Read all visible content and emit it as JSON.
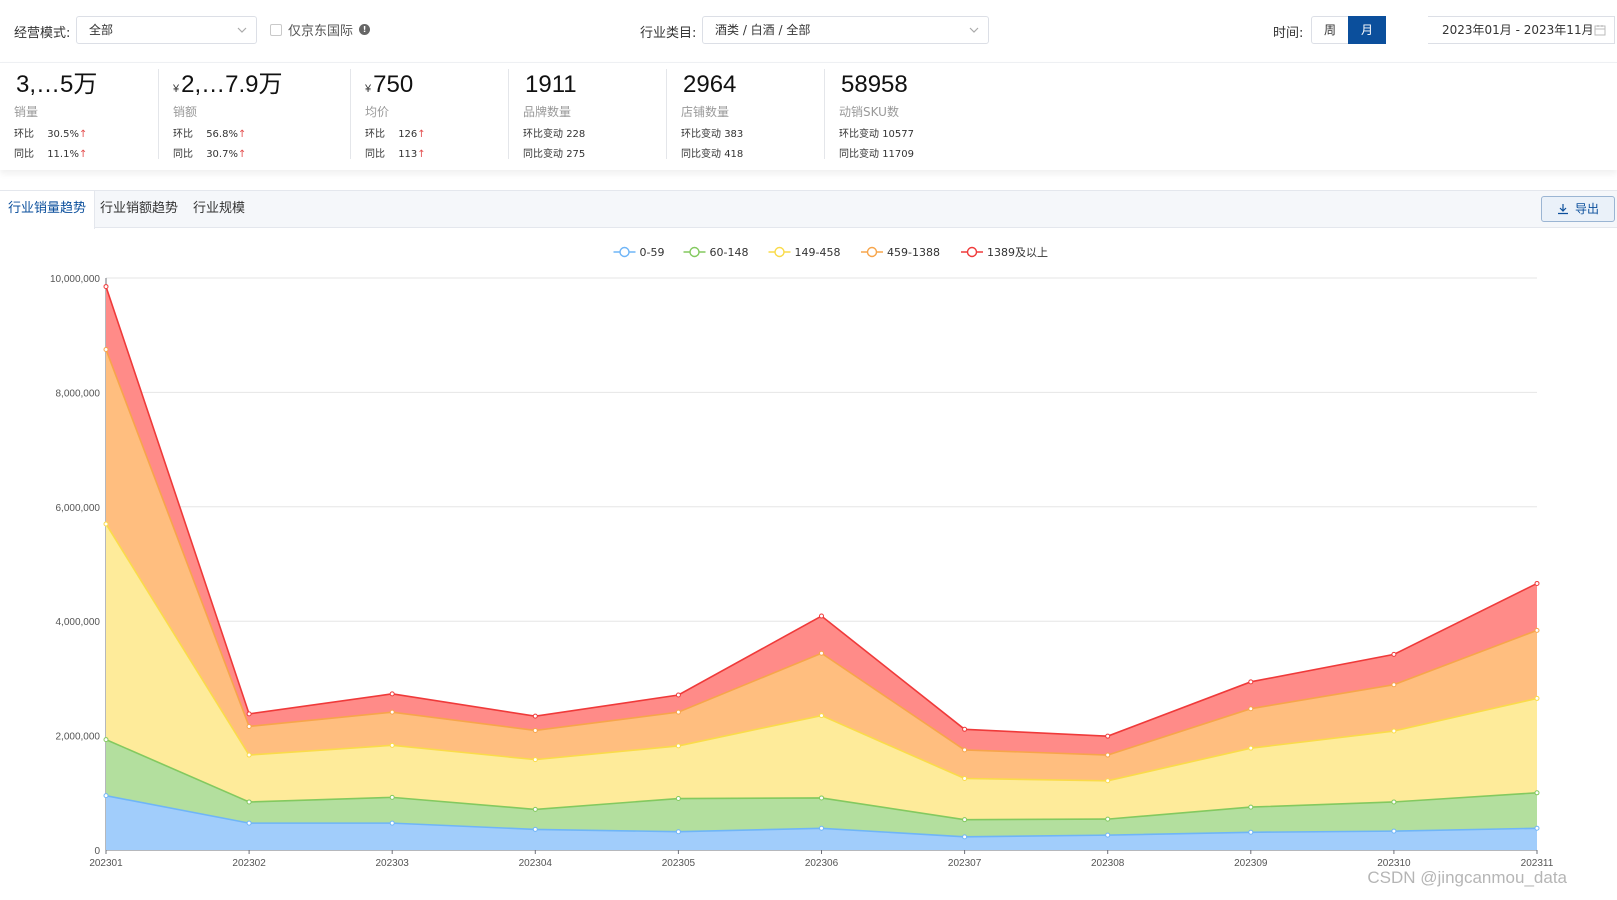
{
  "filters": {
    "mode_label": "经营模式:",
    "mode_value": "全部",
    "jd_intl_label": "仅京东国际",
    "category_label": "行业类目:",
    "category_value": "酒类 / 白酒 / 全部",
    "time_label": "时间:",
    "week_label": "周",
    "month_label": "月",
    "date_range": "2023年01月 - 2023年11月"
  },
  "kpis": [
    {
      "value": "3,…5万",
      "currency": "",
      "label": "销量",
      "r1k": "环比",
      "r1v": "30.5%",
      "r1up": "↑",
      "r2k": "同比",
      "r2v": "11.1%",
      "r2up": "↑"
    },
    {
      "value": "2,…7.9万",
      "currency": "¥",
      "label": "销额",
      "r1k": "环比",
      "r1v": "56.8%",
      "r1up": "↑",
      "r2k": "同比",
      "r2v": "30.7%",
      "r2up": "↑"
    },
    {
      "value": "750",
      "currency": "¥",
      "label": "均价",
      "r1k": "环比",
      "r1v": "126",
      "r1up": "↑",
      "r2k": "同比",
      "r2v": "113",
      "r2up": "↑"
    },
    {
      "value": "1911",
      "currency": "",
      "label": "品牌数量",
      "r1k": "环比变动",
      "r1v": "228",
      "r1up": "",
      "r2k": "同比变动",
      "r2v": "275",
      "r2up": ""
    },
    {
      "value": "2964",
      "currency": "",
      "label": "店铺数量",
      "r1k": "环比变动",
      "r1v": "383",
      "r1up": "",
      "r2k": "同比变动",
      "r2v": "418",
      "r2up": ""
    },
    {
      "value": "58958",
      "currency": "",
      "label": "动销SKU数",
      "r1k": "环比变动",
      "r1v": "10577",
      "r1up": "",
      "r2k": "同比变动",
      "r2v": "11709",
      "r2up": ""
    }
  ],
  "tabs": [
    "行业销量趋势",
    "行业销额趋势",
    "行业规模"
  ],
  "export_label": "导出",
  "watermark": "CSDN @jingcanmou_data",
  "colors": {
    "accent": "#0b4f9c",
    "series": [
      "#6fb5f7",
      "#83c95f",
      "#fadb4a",
      "#f7a54b",
      "#ef3a3a"
    ],
    "fills": [
      "#a1cdfb",
      "#b3df9e",
      "#feeb9a",
      "#ffbe7f",
      "#ff8b88"
    ]
  },
  "chart_data": {
    "type": "area",
    "stacked": true,
    "categories": [
      "202301",
      "202302",
      "202303",
      "202304",
      "202305",
      "202306",
      "202307",
      "202308",
      "202309",
      "202310",
      "202311"
    ],
    "ylim": [
      0,
      10000000
    ],
    "yticks": [
      0,
      2000000,
      4000000,
      6000000,
      8000000,
      10000000
    ],
    "ytick_labels": [
      "0",
      "2,000,000",
      "4,000,000",
      "6,000,000",
      "8,000,000",
      "10,000,000"
    ],
    "legend_position": "top-center",
    "series": [
      {
        "name": "0-59",
        "values": [
          950000,
          470000,
          470000,
          360000,
          320000,
          380000,
          230000,
          260000,
          310000,
          330000,
          380000
        ]
      },
      {
        "name": "60-148",
        "values": [
          980000,
          370000,
          450000,
          350000,
          580000,
          530000,
          300000,
          280000,
          440000,
          510000,
          620000
        ]
      },
      {
        "name": "149-458",
        "values": [
          3770000,
          820000,
          910000,
          870000,
          920000,
          1440000,
          720000,
          670000,
          1030000,
          1240000,
          1650000
        ]
      },
      {
        "name": "459-1388",
        "values": [
          3050000,
          500000,
          580000,
          510000,
          590000,
          1090000,
          500000,
          450000,
          690000,
          810000,
          1190000
        ]
      },
      {
        "name": "1389及以上",
        "values": [
          1100000,
          220000,
          320000,
          250000,
          300000,
          650000,
          360000,
          330000,
          470000,
          530000,
          820000
        ]
      }
    ]
  }
}
